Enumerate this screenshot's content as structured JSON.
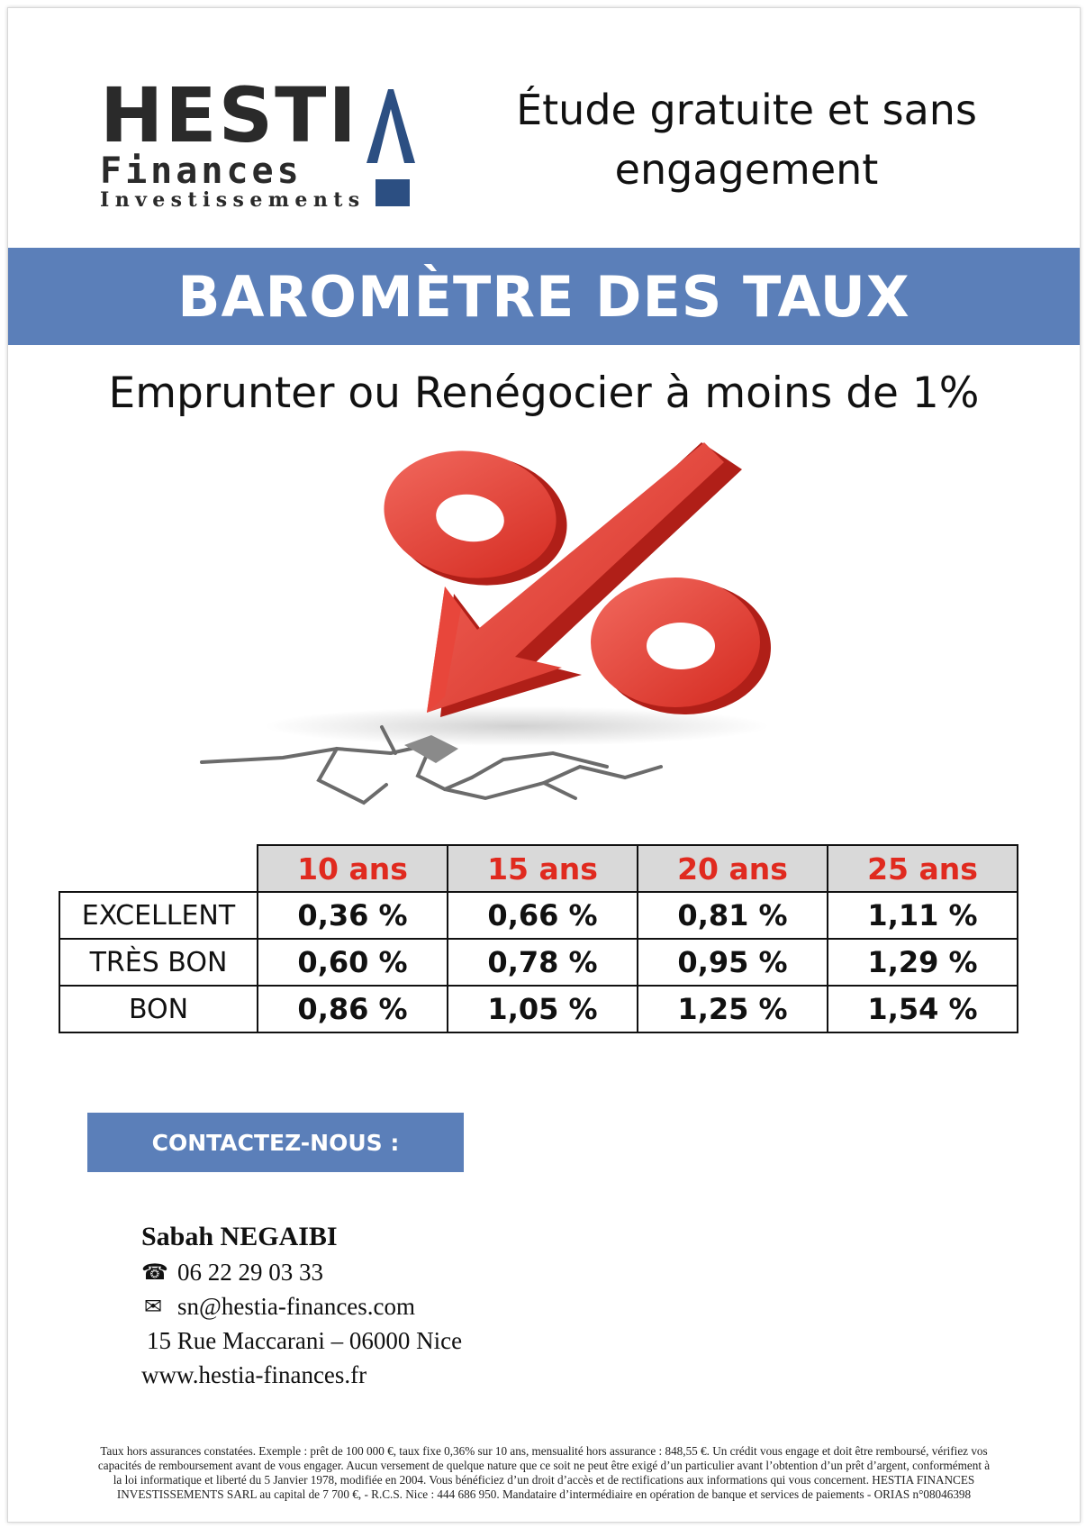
{
  "logo": {
    "line1": "HESTI",
    "line2": "Finances",
    "line3": "Investissements",
    "accent_color": "#2c4f82"
  },
  "tagline": {
    "line1": "Étude gratuite et sans",
    "line2": "engagement"
  },
  "banner": {
    "title": "BAROMÈTRE DES TAUX",
    "color": "#5b7fb9"
  },
  "subtitle": "Emprunter ou Renégocier à moins de 1%",
  "illustration": {
    "icon": "percent-arrow-down-icon"
  },
  "rates_table": {
    "headers": [
      "10 ans",
      "15 ans",
      "20 ans",
      "25 ans"
    ],
    "rows": [
      {
        "label": "EXCELLENT",
        "values": [
          "0,36 %",
          "0,66 %",
          "0,81 %",
          "1,11 %"
        ]
      },
      {
        "label": "TRÈS BON",
        "values": [
          "0,60 %",
          "0,78 %",
          "0,95 %",
          "1,29 %"
        ]
      },
      {
        "label": "BON",
        "values": [
          "0,86 %",
          "1,05 %",
          "1,25 %",
          "1,54 %"
        ]
      }
    ],
    "header_color": "#e02a1f",
    "header_bg": "#d9d9d9"
  },
  "contact": {
    "button_label": "CONTACTEZ-NOUS :",
    "name": "Sabah NEGAIBI",
    "phone": "06 22 29 03 33",
    "phone_icon": "phone-icon",
    "email": "sn@hestia-finances.com",
    "email_icon": "envelope-icon",
    "address": "15 Rue Maccarani – 06000 Nice",
    "website": "www.hestia-finances.fr"
  },
  "footer": {
    "line1": "Taux hors assurances constatées. Exemple : prêt de 100 000 €, taux fixe 0,36% sur 10 ans, mensualité hors assurance : 848,55 €. Un crédit vous engage et doit être remboursé, vérifiez vos",
    "line2": "capacités de remboursement avant de vous engager. Aucun versement de quelque nature que ce soit ne peut être exigé d’un particulier avant l’obtention d’un prêt d’argent, conformément à",
    "line3": "la loi informatique et liberté du 5 Janvier 1978, modifiée en 2004. Vous bénéficiez d’un droit d’accès et de rectifications aux informations qui vous concernent. HESTIA FINANCES",
    "line4": "INVESTISSEMENTS SARL au capital de 7 700 €, - R.C.S. Nice : 444 686 950. Mandataire d’intermédiaire en opération de banque et services de paiements - ORIAS n°08046398"
  }
}
